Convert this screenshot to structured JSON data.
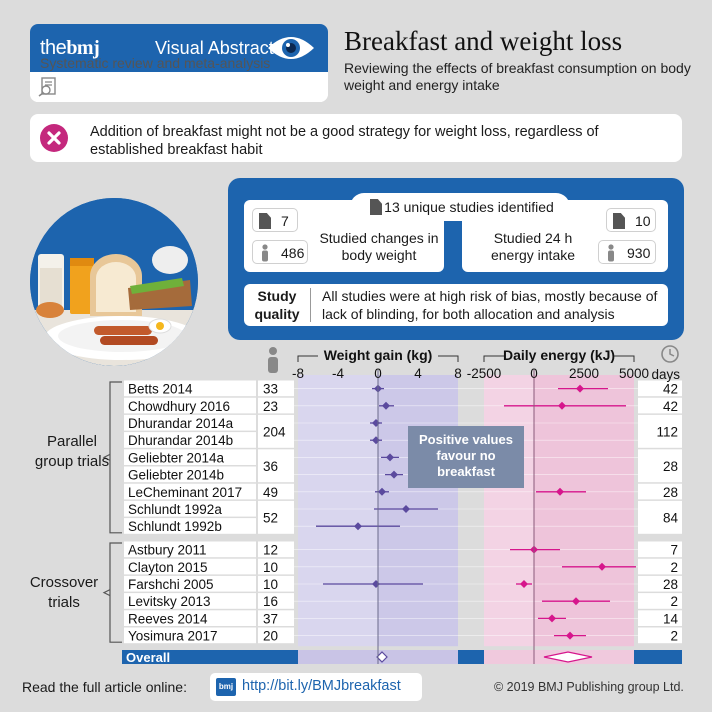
{
  "brand": {
    "logo_prefix": "the",
    "logo_main": "bmj",
    "visual_abstract": "Visual Abstract",
    "study_type": "Systematic review and meta-analysis"
  },
  "header": {
    "title": "Breakfast and weight loss",
    "subtitle": "Reviewing the effects of breakfast consumption on body weight and energy intake"
  },
  "key_message": "Addition of breakfast might not be a good strategy for weight loss, regardless of established breakfast habit",
  "studies": {
    "identified": "13 unique studies identified",
    "left_count": "7",
    "left_participants": "486",
    "left_label": "Studied changes in body weight",
    "right_count": "10",
    "right_participants": "930",
    "right_label": "Studied 24 h energy intake"
  },
  "quality": {
    "label": "Study quality",
    "text": "All studies were at high risk of bias, mostly because of lack of blinding, for both allocation and analysis"
  },
  "chart_data": {
    "type": "forest",
    "panels": [
      {
        "title": "Weight gain (kg)",
        "ticks": [
          -8,
          -4,
          0,
          4,
          8
        ],
        "range": [
          -8,
          8
        ],
        "color": "#5b4a9e"
      },
      {
        "title": "Daily energy (kJ)",
        "ticks": [
          -2500,
          0,
          2500,
          5000
        ],
        "range": [
          -2500,
          5000
        ],
        "color": "#d6168c"
      }
    ],
    "groups": [
      {
        "label": "Parallel group trials",
        "rows": [
          0,
          9
        ]
      },
      {
        "label": "Crossover trials",
        "rows": [
          10,
          15
        ]
      }
    ],
    "n_header_icon": "person-icon",
    "days_header": "days",
    "annotation": "Positive values favour no breakfast",
    "rows": [
      {
        "study": "Betts 2014",
        "n": "33",
        "days": "42",
        "weight": [
          0,
          -0.6,
          0.6
        ],
        "energy": [
          2300,
          1200,
          3700
        ]
      },
      {
        "study": "Chowdhury 2016",
        "n": "23",
        "days": "42",
        "weight": [
          0.8,
          0.1,
          1.6
        ],
        "energy": [
          1400,
          -1500,
          4600
        ]
      },
      {
        "study": "Dhurandar 2014a",
        "n": "204",
        "days": "112",
        "weight": [
          -0.2,
          -0.8,
          0.4
        ],
        "energy": null
      },
      {
        "study": "Dhurandar 2014b",
        "n": "",
        "days": "",
        "weight": [
          -0.2,
          -0.8,
          0.4
        ],
        "energy": null
      },
      {
        "study": "Geliebter 2014a",
        "n": "36",
        "days": "28",
        "weight": [
          1.2,
          0.3,
          2.1
        ],
        "energy": null
      },
      {
        "study": "Geliebter 2014b",
        "n": "",
        "days": "",
        "weight": [
          1.6,
          0.7,
          2.5
        ],
        "energy": null
      },
      {
        "study": "LeCheminant 2017",
        "n": "49",
        "days": "28",
        "weight": [
          0.4,
          -0.3,
          1.1
        ],
        "energy": [
          1300,
          100,
          2600
        ]
      },
      {
        "study": "Schlundt 1992a",
        "n": "52",
        "days": "84",
        "weight": [
          2.8,
          -0.4,
          6.0
        ],
        "energy": null
      },
      {
        "study": "Schlundt 1992b",
        "n": "",
        "days": "",
        "weight": [
          -2.0,
          -6.2,
          2.2
        ],
        "energy": null
      },
      {
        "study": "Astbury 2011",
        "n": "12",
        "days": "7",
        "weight": null,
        "energy": [
          0,
          -1200,
          1300
        ]
      },
      {
        "study": "Clayton 2015",
        "n": "10",
        "days": "2",
        "weight": null,
        "energy": [
          3400,
          1400,
          5100
        ]
      },
      {
        "study": "Farshchi 2005",
        "n": "10",
        "days": "28",
        "weight": [
          -0.2,
          -5.5,
          4.5
        ],
        "energy": [
          -500,
          -900,
          -100
        ]
      },
      {
        "study": "Levitsky 2013",
        "n": "16",
        "days": "2",
        "weight": null,
        "energy": [
          2100,
          400,
          3800
        ]
      },
      {
        "study": "Reeves 2014",
        "n": "37",
        "days": "14",
        "weight": null,
        "energy": [
          900,
          200,
          1600
        ]
      },
      {
        "study": "Yosimura 2017",
        "n": "20",
        "days": "2",
        "weight": null,
        "energy": [
          1800,
          1000,
          2600
        ]
      }
    ],
    "overall": {
      "label": "Overall",
      "weight": [
        0.4,
        -0.1,
        0.9
      ],
      "energy": [
        1700,
        500,
        2900
      ]
    }
  },
  "footer": {
    "read_text": "Read the full article online:",
    "badge": "bmj",
    "link": "http://bit.ly/BMJbreakfast",
    "copyright": "© 2019 BMJ Publishing group Ltd."
  },
  "colors": {
    "brand_blue": "#1d64ae",
    "magenta": "#d6168c",
    "purple": "#5b4a9e"
  }
}
